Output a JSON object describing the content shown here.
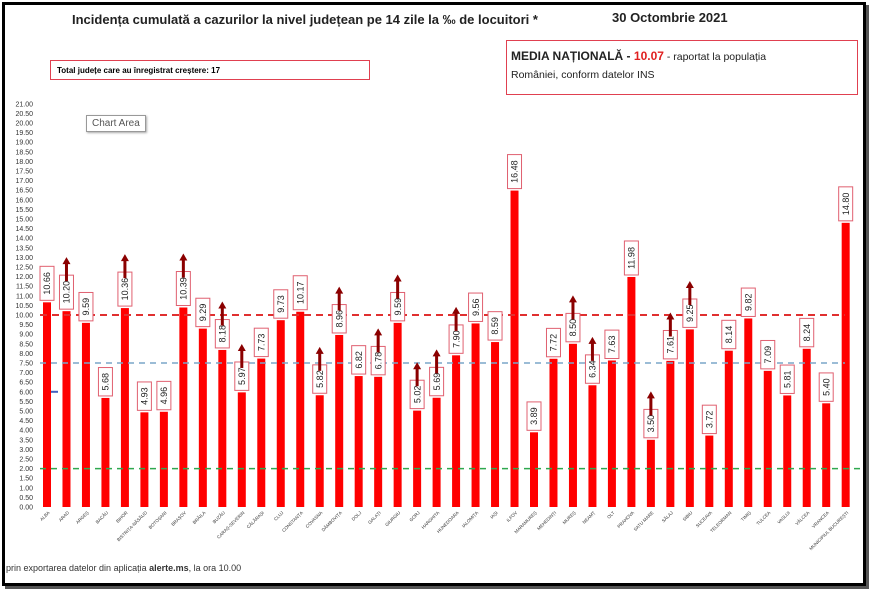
{
  "header": {
    "title": "Incidența cumulată a cazurilor la nivel județean pe 14 zile la ‰ de locuitori *",
    "date": "30 Octombrie 2021"
  },
  "total_box": {
    "text": "Total județe care au înregistrat creștere:  17"
  },
  "media_box": {
    "label": "MEDIA NAȚIONALĂ",
    "sep1": " - ",
    "value": "10.07",
    "sep2": " -  raportat la populația",
    "line2": "României, conform datelor INS"
  },
  "chart_area_tooltip": "Chart Area",
  "footer": {
    "prefix": "prin exportarea datelor din aplicația ",
    "app": "alerte.ms",
    "suffix": ", la ora 10.00"
  },
  "colors": {
    "bar": "#ff0000",
    "arrow": "#8b0000",
    "line_national": "#e03030",
    "line_mid": "#7aa6c8",
    "line_low": "#2fa84f",
    "label_border": "#e06070"
  },
  "chart_data": {
    "type": "bar",
    "ylim": [
      0,
      21
    ],
    "ytick_step": 0.5,
    "grid": false,
    "reference_lines": [
      {
        "value": 10.0,
        "color": "#e03030",
        "style": "dashed"
      },
      {
        "value": 7.5,
        "color": "#7aa6c8",
        "style": "dashed"
      },
      {
        "value": 2.0,
        "color": "#2fa84f",
        "style": "dashed"
      }
    ],
    "categories": [
      "ALBA",
      "ARAD",
      "ARGEȘ",
      "BACĂU",
      "BIHOR",
      "BISTRIȚA-NĂSĂUD",
      "BOTOȘANI",
      "BRAȘOV",
      "BRĂILA",
      "BUZĂU",
      "CARAȘ-SEVERIN",
      "CĂLĂRAȘI",
      "CLUJ",
      "CONSTANȚA",
      "COVASNA",
      "DÂMBOVIȚA",
      "DOLJ",
      "GALAȚI",
      "GIURGIU",
      "GORJ",
      "HARGHITA",
      "HUNEDOARA",
      "IALOMIȚA",
      "IAȘI",
      "ILFOV",
      "MARAMUREȘ",
      "MEHEDINȚI",
      "MUREȘ",
      "NEAMȚ",
      "OLT",
      "PRAHOVA",
      "SATU MARE",
      "SĂLAJ",
      "SIBIU",
      "SUCEAVA",
      "TELEORMAN",
      "TIMIȘ",
      "TULCEA",
      "VASLUI",
      "VÂLCEA",
      "VRANCEA",
      "MUNICIPIUL BUCUREȘTI"
    ],
    "values": [
      10.66,
      10.2,
      9.59,
      5.68,
      10.36,
      4.93,
      4.96,
      10.39,
      9.29,
      8.18,
      5.97,
      7.73,
      9.73,
      10.17,
      5.82,
      8.96,
      6.82,
      6.78,
      9.59,
      5.02,
      5.69,
      7.9,
      9.56,
      8.59,
      16.48,
      3.89,
      7.72,
      8.5,
      6.34,
      7.63,
      11.98,
      3.5,
      7.61,
      9.25,
      3.72,
      8.14,
      9.82,
      7.09,
      5.81,
      8.24,
      5.4,
      14.8
    ],
    "increase": [
      false,
      true,
      false,
      false,
      true,
      false,
      false,
      true,
      false,
      true,
      true,
      false,
      false,
      false,
      true,
      true,
      false,
      true,
      true,
      true,
      true,
      true,
      false,
      false,
      false,
      false,
      false,
      true,
      true,
      false,
      false,
      true,
      true,
      true,
      false,
      false,
      false,
      false,
      false,
      false,
      false,
      false
    ]
  }
}
